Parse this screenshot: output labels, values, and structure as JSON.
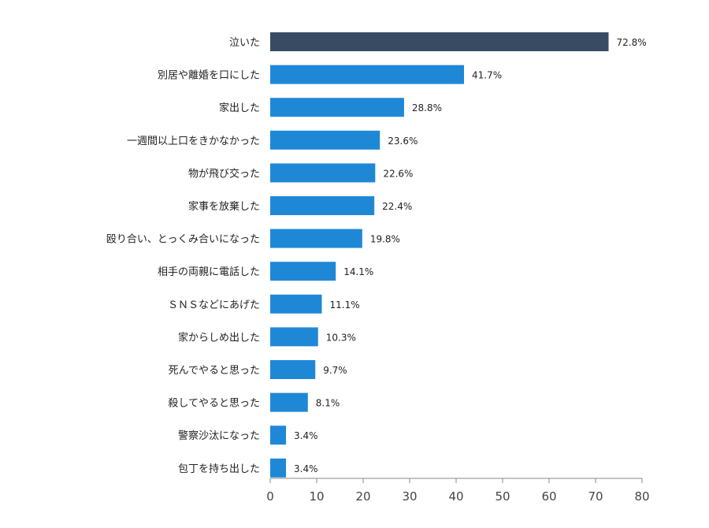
{
  "chart_data": {
    "type": "bar",
    "orientation": "horizontal",
    "categories": [
      "泣いた",
      "別居や離婚を口にした",
      "家出した",
      "一週間以上口をきかなかった",
      "物が飛び交った",
      "家事を放棄した",
      "殴り合い、とっくみ合いになった",
      "相手の両親に電話した",
      "ＳＮＳなどにあげた",
      "家からしめ出した",
      "死んでやると思った",
      "殺してやると思った",
      "警察沙汰になった",
      "包丁を持ち出した"
    ],
    "values": [
      72.8,
      41.7,
      28.8,
      23.6,
      22.6,
      22.4,
      19.8,
      14.1,
      11.1,
      10.3,
      9.7,
      8.1,
      3.4,
      3.4
    ],
    "value_labels": [
      "72.8%",
      "41.7%",
      "28.8%",
      "23.6%",
      "22.6%",
      "22.4%",
      "19.8%",
      "14.1%",
      "11.1%",
      "10.3%",
      "9.7%",
      "8.1%",
      "3.4%",
      "3.4%"
    ],
    "xlim": [
      0,
      80
    ],
    "xticks": [
      0,
      10,
      20,
      30,
      40,
      50,
      60,
      70,
      80
    ],
    "title": "",
    "xlabel": "",
    "ylabel": "",
    "grid": false,
    "colors": {
      "highlight": "#384b63",
      "bar": "#1f88d6",
      "axis": "#888888"
    },
    "highlight_index": 0
  }
}
